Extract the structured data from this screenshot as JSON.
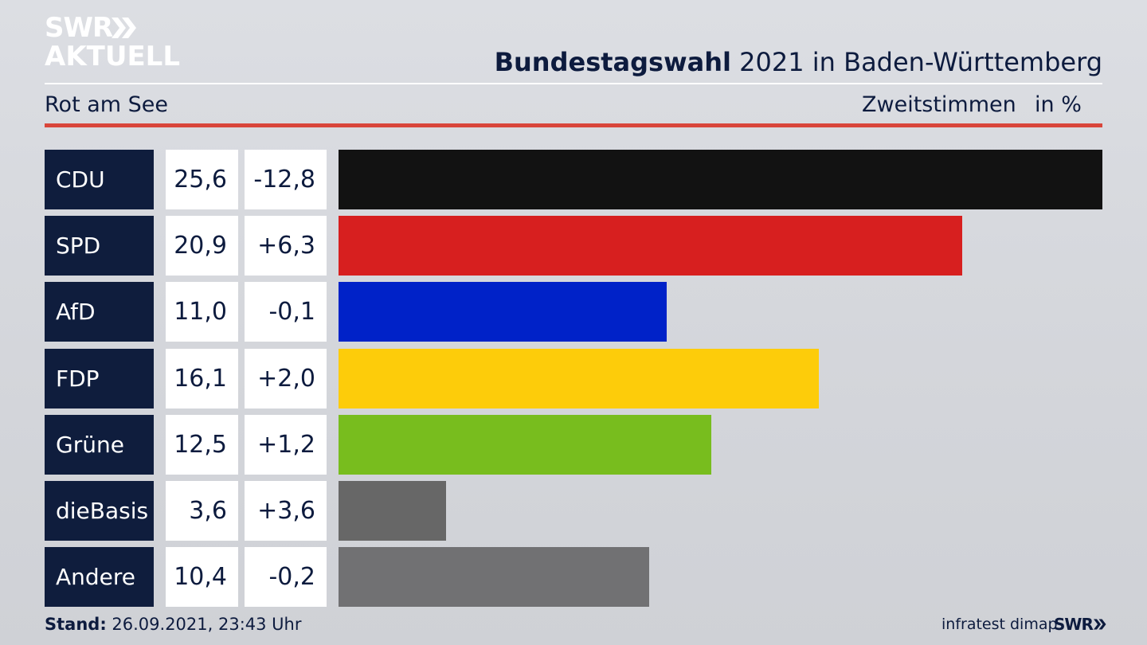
{
  "logo": {
    "line1": "SWR",
    "line2": "AKTUELL"
  },
  "header": {
    "title_bold": "Bundestagswahl",
    "title_rest": " 2021 in Baden-Württemberg",
    "subtitle": "Rot am See",
    "measure": "Zweitstimmen",
    "unit": "in %"
  },
  "footer": {
    "stand_label": "Stand:",
    "stand_value": " 26.09.2021, 23:43 Uhr",
    "source": "infratest dimap",
    "brand": "SWR"
  },
  "colors": {
    "background": "#d6d8dd",
    "party_box": "#0f1d3d",
    "accent_rule": "#d9463b"
  },
  "chart_data": {
    "type": "bar",
    "orientation": "horizontal",
    "title": "Bundestagswahl 2021 in Baden-Württemberg",
    "subtitle": "Rot am See",
    "measure": "Zweitstimmen",
    "unit": "in %",
    "categories": [
      "CDU",
      "SPD",
      "AfD",
      "FDP",
      "Grüne",
      "dieBasis",
      "Andere"
    ],
    "values": [
      25.6,
      20.9,
      11.0,
      16.1,
      12.5,
      3.6,
      10.4
    ],
    "value_labels": [
      "25,6",
      "20,9",
      "11,0",
      "16,1",
      "12,5",
      "3,6",
      "10,4"
    ],
    "change_labels": [
      "-12,8",
      "+6,3",
      "-0,1",
      "+2,0",
      "+1,2",
      "+3,6",
      "-0,2"
    ],
    "changes": [
      -12.8,
      6.3,
      -0.1,
      2.0,
      1.2,
      3.6,
      -0.2
    ],
    "colors": [
      "#121212",
      "#d71f1f",
      "#0022c8",
      "#fdcc0a",
      "#78bd1e",
      "#676767",
      "#717173"
    ],
    "xlim": [
      0,
      25.6
    ],
    "grid": false,
    "legend": "none"
  }
}
